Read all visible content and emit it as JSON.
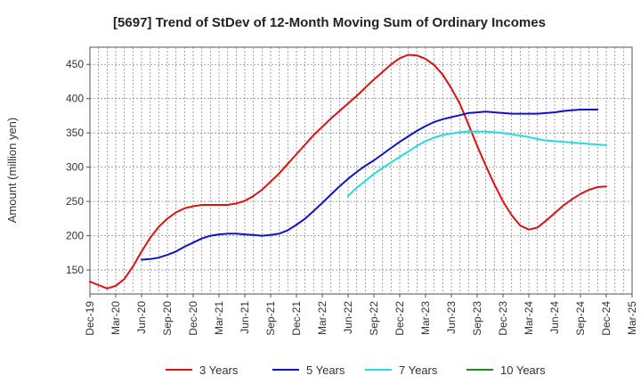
{
  "chart_data": {
    "type": "line",
    "title": "[5697]  Trend of StDev of 12-Month Moving Sum of Ordinary Incomes",
    "xlabel": "",
    "ylabel": "Amount (million yen)",
    "ylim": [
      115,
      475
    ],
    "yticks": [
      150,
      200,
      250,
      300,
      350,
      400,
      450
    ],
    "grid": true,
    "legend_position": "bottom",
    "x_tick_labels": [
      "Dec-19",
      "Mar-20",
      "Jun-20",
      "Sep-20",
      "Dec-20",
      "Mar-21",
      "Jun-21",
      "Sep-21",
      "Dec-21",
      "Mar-22",
      "Jun-22",
      "Sep-22",
      "Dec-22",
      "Mar-23",
      "Jun-23",
      "Sep-23",
      "Dec-23",
      "Mar-24",
      "Jun-24",
      "Sep-24",
      "Dec-24",
      "Mar-25"
    ],
    "series": [
      {
        "name": "3 Years",
        "color": "#dd1111",
        "start_index": 0,
        "values": [
          133,
          128,
          123,
          127,
          137,
          155,
          177,
          197,
          213,
          225,
          234,
          240,
          243,
          245,
          245,
          245,
          245,
          247,
          251,
          258,
          267,
          279,
          291,
          305,
          319,
          333,
          347,
          359,
          371,
          382,
          393,
          404,
          416,
          428,
          439,
          450,
          459,
          464,
          463,
          458,
          449,
          435,
          415,
          392,
          362,
          331,
          302,
          275,
          250,
          230,
          215,
          209,
          212,
          222,
          233,
          244,
          253,
          261,
          267,
          271,
          272
        ]
      },
      {
        "name": "5 Years",
        "color": "#1111cc",
        "start_index": 6,
        "values": [
          165,
          166,
          168,
          172,
          177,
          184,
          190,
          196,
          200,
          202,
          203,
          203,
          202,
          201,
          200,
          201,
          203,
          208,
          216,
          225,
          236,
          248,
          260,
          272,
          283,
          293,
          302,
          310,
          319,
          328,
          337,
          345,
          353,
          360,
          366,
          370,
          373,
          376,
          379,
          380,
          381,
          380,
          379,
          378,
          378,
          378,
          378,
          379,
          380,
          382,
          383,
          384,
          384,
          384
        ]
      },
      {
        "name": "7 Years",
        "color": "#22dddd",
        "start_index": 30,
        "values": [
          258,
          270,
          280,
          290,
          299,
          307,
          315,
          323,
          331,
          338,
          343,
          347,
          349,
          351,
          352,
          352,
          352,
          351,
          350,
          348,
          346,
          344,
          341,
          339,
          338,
          337,
          336,
          335,
          334,
          333,
          332
        ]
      },
      {
        "name": "10 Years",
        "color": "#228822",
        "start_index": 0,
        "values": []
      }
    ]
  }
}
